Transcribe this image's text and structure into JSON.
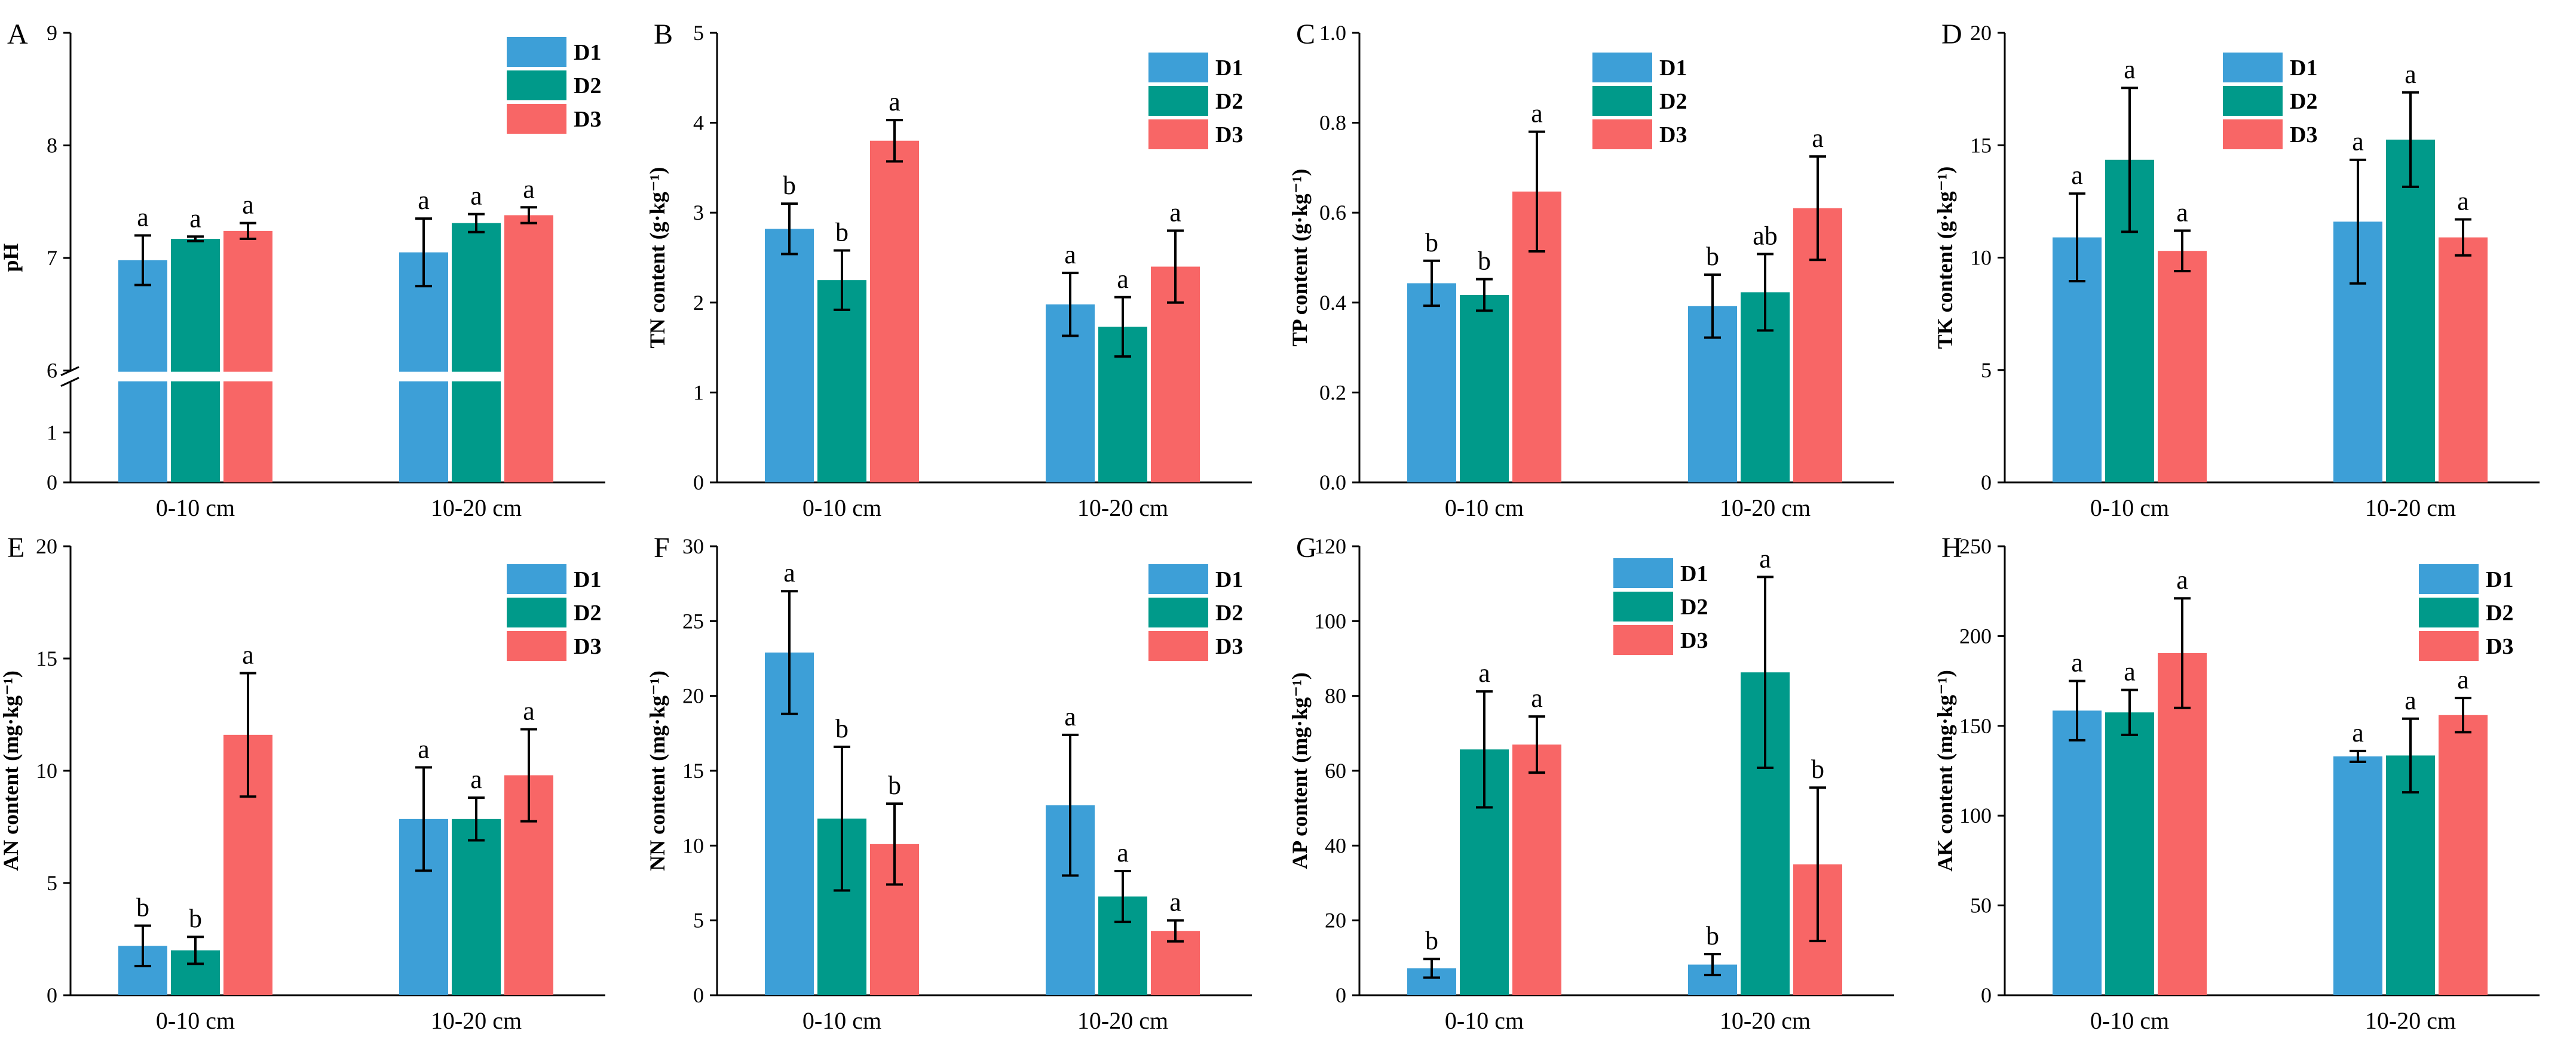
{
  "legend": {
    "series": [
      {
        "name": "D1",
        "color": "#3d9fd7"
      },
      {
        "name": "D2",
        "color": "#009a8a"
      },
      {
        "name": "D3",
        "color": "#f86666"
      }
    ]
  },
  "chart_data": [
    {
      "type": "bar",
      "panel": "A",
      "ylabel": "pH",
      "categories": [
        "0-10 cm",
        "10-20 cm"
      ],
      "ylim": [
        0,
        9
      ],
      "yticks": [
        0,
        1,
        6,
        7,
        8,
        9
      ],
      "axis_break": {
        "lower_max": 2,
        "upper_min": 6,
        "upper_max": 9
      },
      "series": [
        {
          "name": "D1",
          "values": [
            6.98,
            7.05
          ],
          "errors": [
            0.22,
            0.3
          ],
          "sig": [
            "a",
            "a"
          ]
        },
        {
          "name": "D2",
          "values": [
            7.17,
            7.31
          ],
          "errors": [
            0.02,
            0.08
          ],
          "sig": [
            "a",
            "a"
          ]
        },
        {
          "name": "D3",
          "values": [
            7.24,
            7.38
          ],
          "errors": [
            0.07,
            0.07
          ],
          "sig": [
            "a",
            "a"
          ]
        }
      ]
    },
    {
      "type": "bar",
      "panel": "B",
      "ylabel": "TN content (g·kg⁻¹)",
      "categories": [
        "0-10 cm",
        "10-20 cm"
      ],
      "ylim": [
        0,
        5
      ],
      "yticks": [
        0,
        1,
        2,
        3,
        4,
        5
      ],
      "series": [
        {
          "name": "D1",
          "values": [
            2.82,
            1.98
          ],
          "errors": [
            0.28,
            0.35
          ],
          "sig": [
            "b",
            "a"
          ]
        },
        {
          "name": "D2",
          "values": [
            2.25,
            1.73
          ],
          "errors": [
            0.33,
            0.33
          ],
          "sig": [
            "b",
            "a"
          ]
        },
        {
          "name": "D3",
          "values": [
            3.8,
            2.4
          ],
          "errors": [
            0.23,
            0.4
          ],
          "sig": [
            "a",
            "a"
          ]
        }
      ]
    },
    {
      "type": "bar",
      "panel": "C",
      "ylabel": "TP content (g·kg⁻¹)",
      "categories": [
        "0-10 cm",
        "10-20 cm"
      ],
      "ylim": [
        0,
        1.0
      ],
      "yticks": [
        0.0,
        0.2,
        0.4,
        0.6,
        0.8,
        1.0
      ],
      "series": [
        {
          "name": "D1",
          "values": [
            0.443,
            0.392
          ],
          "errors": [
            0.05,
            0.07
          ],
          "sig": [
            "b",
            "b"
          ]
        },
        {
          "name": "D2",
          "values": [
            0.417,
            0.423
          ],
          "errors": [
            0.035,
            0.085
          ],
          "sig": [
            "b",
            "ab"
          ]
        },
        {
          "name": "D3",
          "values": [
            0.647,
            0.61
          ],
          "errors": [
            0.133,
            0.115
          ],
          "sig": [
            "a",
            "a"
          ]
        }
      ]
    },
    {
      "type": "bar",
      "panel": "D",
      "ylabel": "TK content (g·kg⁻¹)",
      "categories": [
        "0-10 cm",
        "10-20 cm"
      ],
      "ylim": [
        0,
        20
      ],
      "yticks": [
        0,
        5,
        10,
        15,
        20
      ],
      "series": [
        {
          "name": "D1",
          "values": [
            10.9,
            11.6
          ],
          "errors": [
            1.95,
            2.75
          ],
          "sig": [
            "a",
            "a"
          ]
        },
        {
          "name": "D2",
          "values": [
            14.35,
            15.25
          ],
          "errors": [
            3.2,
            2.1
          ],
          "sig": [
            "a",
            "a"
          ]
        },
        {
          "name": "D3",
          "values": [
            10.3,
            10.9
          ],
          "errors": [
            0.9,
            0.8
          ],
          "sig": [
            "a",
            "a"
          ]
        }
      ]
    },
    {
      "type": "bar",
      "panel": "E",
      "ylabel": "AN content (mg·kg⁻¹)",
      "categories": [
        "0-10 cm",
        "10-20 cm"
      ],
      "ylim": [
        0,
        20
      ],
      "yticks": [
        0,
        5,
        10,
        15,
        20
      ],
      "series": [
        {
          "name": "D1",
          "values": [
            2.2,
            7.85
          ],
          "errors": [
            0.9,
            2.3
          ],
          "sig": [
            "b",
            "a"
          ]
        },
        {
          "name": "D2",
          "values": [
            2.0,
            7.85
          ],
          "errors": [
            0.6,
            0.95
          ],
          "sig": [
            "b",
            "a"
          ]
        },
        {
          "name": "D3",
          "values": [
            11.6,
            9.8
          ],
          "errors": [
            2.75,
            2.05
          ],
          "sig": [
            "a",
            "a"
          ]
        }
      ]
    },
    {
      "type": "bar",
      "panel": "F",
      "ylabel": "NN content (mg·kg⁻¹)",
      "categories": [
        "0-10 cm",
        "10-20 cm"
      ],
      "ylim": [
        0,
        30
      ],
      "yticks": [
        0,
        5,
        10,
        15,
        20,
        25,
        30
      ],
      "series": [
        {
          "name": "D1",
          "values": [
            22.9,
            12.7
          ],
          "errors": [
            4.1,
            4.7
          ],
          "sig": [
            "a",
            "a"
          ]
        },
        {
          "name": "D2",
          "values": [
            11.8,
            6.6
          ],
          "errors": [
            4.8,
            1.7
          ],
          "sig": [
            "b",
            "a"
          ]
        },
        {
          "name": "D3",
          "values": [
            10.1,
            4.3
          ],
          "errors": [
            2.7,
            0.7
          ],
          "sig": [
            "b",
            "a"
          ]
        }
      ]
    },
    {
      "type": "bar",
      "panel": "G",
      "ylabel": "AP content (mg·kg⁻¹)",
      "categories": [
        "0-10 cm",
        "10-20 cm"
      ],
      "ylim": [
        0,
        120
      ],
      "yticks": [
        0,
        20,
        40,
        60,
        80,
        100,
        120
      ],
      "series": [
        {
          "name": "D1",
          "values": [
            7.2,
            8.2
          ],
          "errors": [
            2.5,
            2.8
          ],
          "sig": [
            "b",
            "b"
          ]
        },
        {
          "name": "D2",
          "values": [
            65.7,
            86.3
          ],
          "errors": [
            15.5,
            25.5
          ],
          "sig": [
            "a",
            "a"
          ]
        },
        {
          "name": "D3",
          "values": [
            67.0,
            35.0
          ],
          "errors": [
            7.5,
            20.5
          ],
          "sig": [
            "a",
            "b"
          ]
        }
      ]
    },
    {
      "type": "bar",
      "panel": "H",
      "ylabel": "AK content (mg·kg⁻¹)",
      "categories": [
        "0-10 cm",
        "10-20 cm"
      ],
      "ylim": [
        0,
        250
      ],
      "yticks": [
        0,
        50,
        100,
        150,
        200,
        250
      ],
      "series": [
        {
          "name": "D1",
          "values": [
            158.5,
            133.0
          ],
          "errors": [
            16.5,
            3.0
          ],
          "sig": [
            "a",
            "a"
          ]
        },
        {
          "name": "D2",
          "values": [
            157.5,
            133.5
          ],
          "errors": [
            12.5,
            20.5
          ],
          "sig": [
            "a",
            "a"
          ]
        },
        {
          "name": "D3",
          "values": [
            190.5,
            156.0
          ],
          "errors": [
            30.5,
            9.5
          ],
          "sig": [
            "a",
            "a"
          ]
        }
      ]
    }
  ]
}
